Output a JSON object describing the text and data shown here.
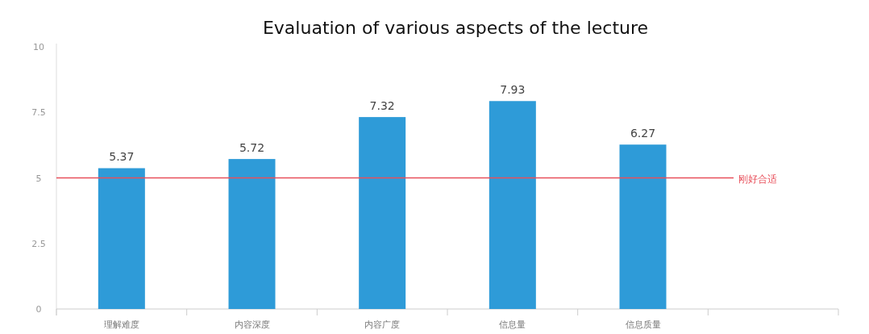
{
  "chart_data": {
    "type": "bar",
    "title": "Evaluation of various aspects of the lecture",
    "categories": [
      "理解难度",
      "内容深度",
      "内容广度",
      "信息量",
      "信息质量",
      null
    ],
    "values": [
      5.37,
      5.72,
      7.32,
      7.93,
      6.27,
      null
    ],
    "color": "#2e9bd8",
    "ylim": [
      0,
      10
    ],
    "yticks": [
      0,
      2.5,
      5,
      7.5,
      10
    ],
    "data_labels": true,
    "ref_lines": [
      {
        "axis": "y",
        "value": 5,
        "label": "刚好合适",
        "color": "#e8505b"
      }
    ]
  }
}
